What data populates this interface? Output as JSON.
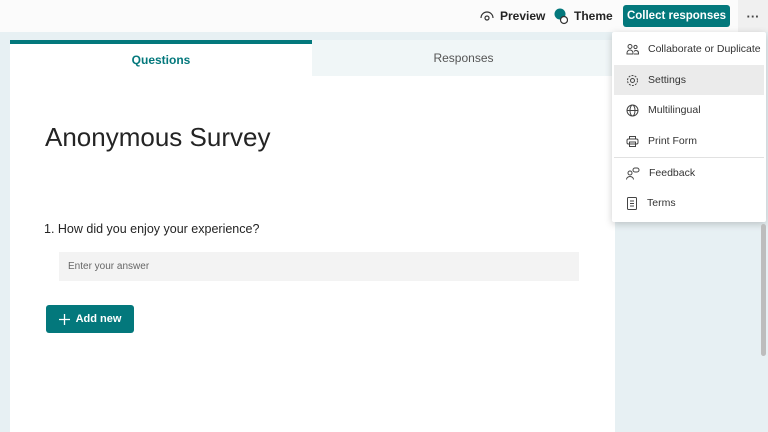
{
  "topbar": {
    "preview_label": "Preview",
    "theme_label": "Theme",
    "collect_label": "Collect responses",
    "more_label": "···"
  },
  "tabs": [
    {
      "label": "Questions",
      "active": true
    },
    {
      "label": "Responses",
      "active": false
    }
  ],
  "form": {
    "title": "Anonymous Survey",
    "question": "1. How did you enjoy your experience?",
    "answer_placeholder": "Enter your answer",
    "add_label": "Add new"
  },
  "menu": {
    "items": [
      {
        "label": "Collaborate or Duplicate",
        "icon": "people-icon"
      },
      {
        "label": "Settings",
        "icon": "gear-icon",
        "highlighted": true
      },
      {
        "label": "Multilingual",
        "icon": "globe-icon"
      },
      {
        "label": "Print Form",
        "icon": "printer-icon"
      },
      {
        "label": "Feedback",
        "icon": "feedback-icon"
      },
      {
        "label": "Terms",
        "icon": "document-icon"
      }
    ]
  },
  "colors": {
    "accent": "#03787c",
    "background": "#e7f0f3"
  }
}
